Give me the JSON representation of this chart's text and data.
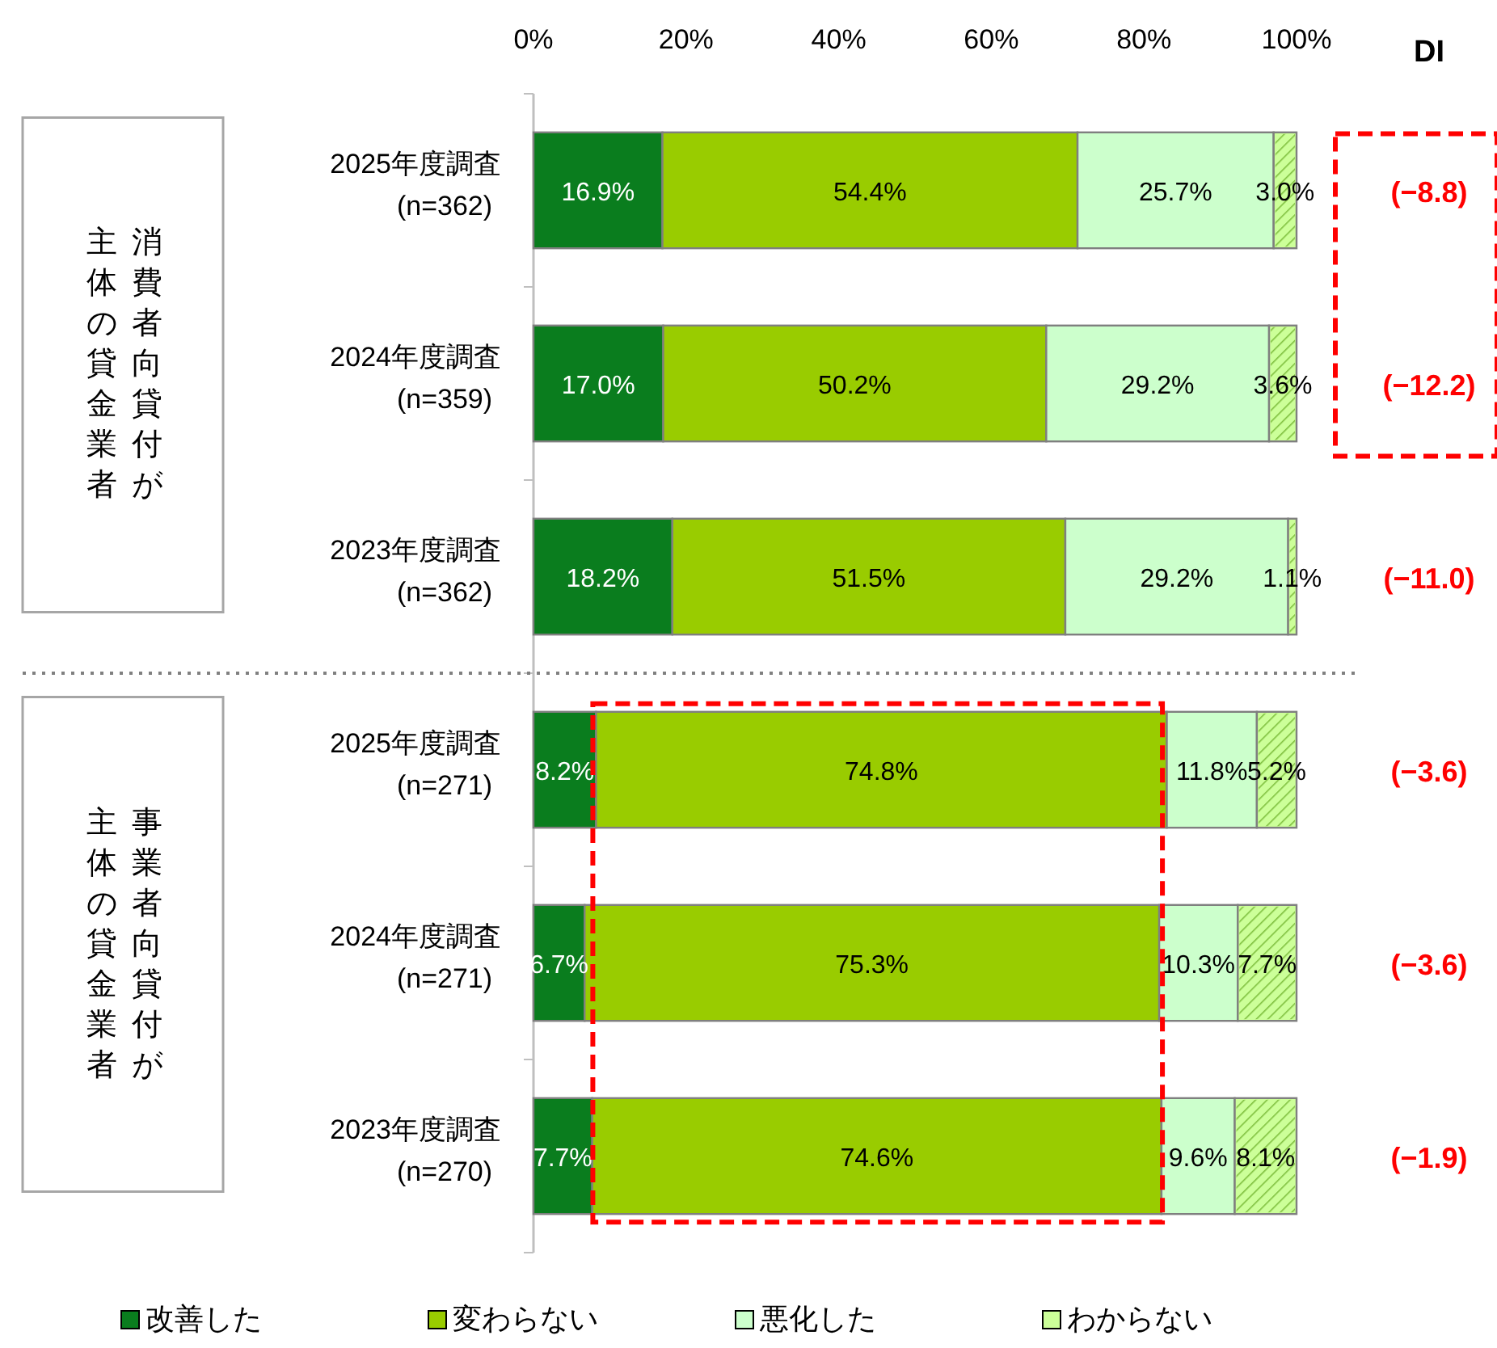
{
  "chart_data": {
    "type": "bar",
    "orientation": "horizontal",
    "stacked": true,
    "categories": [
      "2025年度調査\n(n=362)",
      "2024年度調査\n(n=359)",
      "2023年度調査\n(n=362)",
      "2025年度調査\n(n=271)",
      "2024年度調査\n(n=271)",
      "2023年度調査\n(n=270)"
    ],
    "series": [
      {
        "name": "改善した",
        "color": "#0a7d1e",
        "values": [
          16.9,
          17.0,
          18.2,
          8.2,
          6.7,
          7.7
        ],
        "value_labels": [
          "16.9%",
          "17.0%",
          "18.2%",
          "8.2%",
          "6.7%",
          "7.7%"
        ]
      },
      {
        "name": "変わらない",
        "color": "#99cc00",
        "values": [
          54.4,
          50.2,
          51.5,
          74.8,
          75.3,
          74.6
        ],
        "value_labels": [
          "54.4%",
          "50.2%",
          "51.5%",
          "74.8%",
          "75.3%",
          "74.6%"
        ]
      },
      {
        "name": "悪化した",
        "color": "#ccffcc",
        "values": [
          25.7,
          29.2,
          29.2,
          11.8,
          10.3,
          9.6
        ],
        "value_labels": [
          "25.7%",
          "29.2%",
          "29.2%",
          "11.8%",
          "10.3%",
          "9.6%"
        ]
      },
      {
        "name": "わからない",
        "color": "#ccff99",
        "values": [
          3.0,
          3.6,
          1.1,
          5.2,
          7.7,
          8.1
        ],
        "value_labels": [
          "3.0%",
          "3.6%",
          "1.1%",
          "5.2%",
          "7.7%",
          "8.1%"
        ]
      }
    ],
    "xlim": [
      0,
      100
    ],
    "xticks": [
      {
        "value": 0,
        "label": "0%"
      },
      {
        "value": 20,
        "label": "20%"
      },
      {
        "value": 40,
        "label": "40%"
      },
      {
        "value": 60,
        "label": "60%"
      },
      {
        "value": 80,
        "label": "80%"
      },
      {
        "value": 100,
        "label": "100%"
      }
    ],
    "grid": false,
    "legend": "bottom",
    "annotations": [
      "DI",
      "消費者向貸付が",
      "主体の貸金業者",
      "事業者向貸付が",
      "主体の貸金業者",
      "(−8.8)",
      "(−12.2)",
      "(−11.0)",
      "(−3.6)",
      "(−3.6)",
      "(−1.9)"
    ]
  }
}
